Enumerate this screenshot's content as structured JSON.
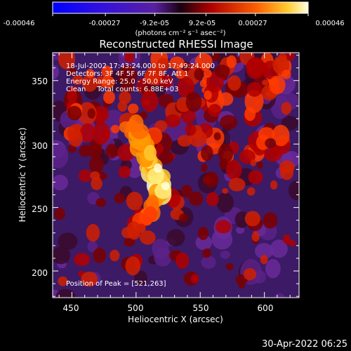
{
  "colorbar": {
    "ticks": [
      "-0.00046",
      "-0.00027",
      "-9.2e-05",
      "9.2e-05",
      "0.00027",
      "0.00046"
    ],
    "tick_values": [
      -0.00046,
      -0.00027,
      -9.2e-05,
      9.2e-05,
      0.00027,
      0.00046
    ],
    "range": [
      -0.00046,
      0.00046
    ],
    "units_label": "(photons cm⁻² s⁻¹ asec⁻²)"
  },
  "chart_data": {
    "type": "heatmap",
    "title": "Reconstructed RHESSI Image",
    "xlabel": "Heliocentric X (arcsec)",
    "ylabel": "Heliocentric Y (arcsec)",
    "xlim": [
      435,
      627
    ],
    "ylim": [
      179,
      372
    ],
    "xticks": [
      450,
      500,
      550,
      600
    ],
    "yticks": [
      200,
      250,
      300,
      350
    ],
    "peak": [
      521,
      263
    ],
    "annotations": {
      "time_range": "18-Jul-2002 17:43:24.000 to 17:49:24.000",
      "detectors": "Detectors: 3F 4F 5F 6F 7F 8F, Att 1",
      "energy": "Energy Range: 25.0 - 50.0 keV",
      "clean": "Clean     Total counts: 6.88E+03",
      "peak_text": "Position of Peak = [521,263]"
    },
    "colors": {
      "low": "#0000ff",
      "mid_low": "#7828a0",
      "zero": "#000000",
      "mid": "#c81400",
      "high": "#ff9600",
      "top": "#ffffe0"
    }
  },
  "footer": {
    "date": "30-Apr-2022 06:25"
  }
}
